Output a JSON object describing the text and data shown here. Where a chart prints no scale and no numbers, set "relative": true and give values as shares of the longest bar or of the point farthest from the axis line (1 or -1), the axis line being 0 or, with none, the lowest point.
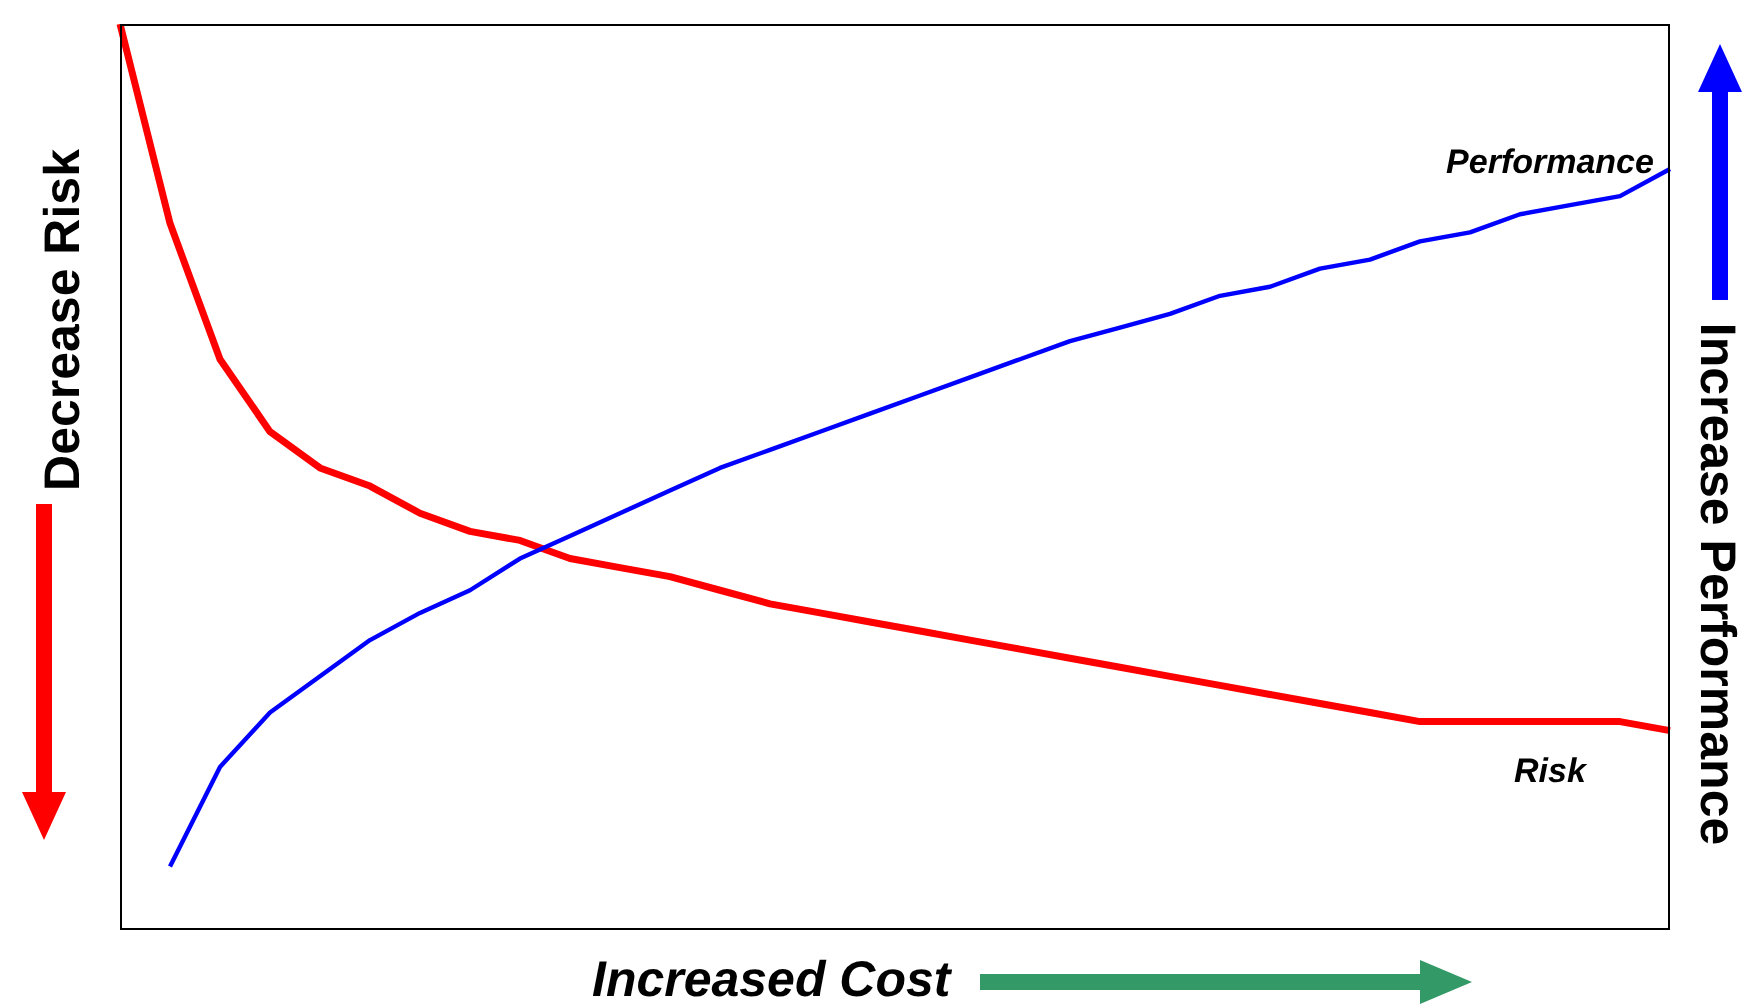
{
  "chart_data": {
    "type": "line",
    "relative": true,
    "xlabel": "Increased Cost",
    "ylabel": "Decrease Risk",
    "y2label": "Increase Performance",
    "categories": [
      null,
      null,
      null,
      null,
      null,
      null,
      null,
      null,
      null,
      null,
      null,
      null,
      null,
      null,
      null,
      null,
      null,
      null,
      null,
      null,
      null,
      null,
      null,
      null,
      null,
      null,
      null,
      null,
      null,
      null,
      null,
      null
    ],
    "series": [
      {
        "name": "Risk",
        "color": "#ff0000",
        "values": [
          1.0,
          0.78,
          0.63,
          0.55,
          0.51,
          0.49,
          0.46,
          0.44,
          0.43,
          0.41,
          0.4,
          0.39,
          0.375,
          0.36,
          0.35,
          0.34,
          0.33,
          0.32,
          0.31,
          0.3,
          0.29,
          0.28,
          0.27,
          0.26,
          0.25,
          0.24,
          0.23,
          0.23,
          0.23,
          0.23,
          0.23,
          0.22
        ]
      },
      {
        "name": "Performance",
        "color": "#0000ff",
        "values": [
          null,
          0.07,
          0.18,
          0.24,
          0.28,
          0.32,
          0.35,
          0.375,
          0.41,
          0.435,
          0.46,
          0.485,
          0.51,
          0.53,
          0.55,
          0.57,
          0.59,
          0.61,
          0.63,
          0.65,
          0.665,
          0.68,
          0.7,
          0.71,
          0.73,
          0.74,
          0.76,
          0.77,
          0.79,
          0.8,
          0.81,
          0.84
        ]
      }
    ],
    "grid": false,
    "legend": false,
    "marker": "none",
    "line_style": "solid"
  }
}
